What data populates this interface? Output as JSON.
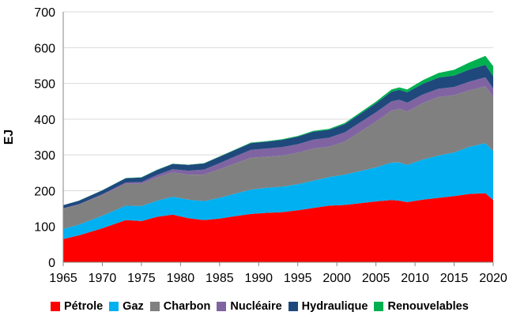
{
  "chart_data": {
    "type": "area",
    "stacked": true,
    "xlabel": "",
    "ylabel": "EJ",
    "ylim": [
      0,
      700
    ],
    "xlim": [
      1965,
      2020
    ],
    "yticks": [
      0,
      100,
      200,
      300,
      400,
      500,
      600,
      700
    ],
    "xticks": [
      1965,
      1970,
      1975,
      1980,
      1985,
      1990,
      1995,
      2000,
      2005,
      2010,
      2015,
      2020
    ],
    "grid": "horizontal",
    "legend_position": "bottom",
    "x": [
      1965,
      1967,
      1970,
      1973,
      1975,
      1977,
      1979,
      1981,
      1983,
      1985,
      1987,
      1989,
      1991,
      1993,
      1995,
      1997,
      1999,
      2001,
      2003,
      2005,
      2007,
      2008,
      2009,
      2011,
      2013,
      2015,
      2017,
      2019,
      2020
    ],
    "series": [
      {
        "name": "Pétrole",
        "color": "#ff0000",
        "values": [
          65,
          75,
          95,
          118,
          115,
          127,
          133,
          123,
          118,
          122,
          129,
          135,
          138,
          140,
          145,
          152,
          158,
          160,
          165,
          170,
          174,
          172,
          168,
          175,
          180,
          185,
          191,
          193,
          174
        ]
      },
      {
        "name": "Gaz",
        "color": "#00b0f0",
        "values": [
          28,
          30,
          35,
          40,
          42,
          45,
          50,
          52,
          53,
          58,
          63,
          68,
          70,
          71,
          73,
          76,
          80,
          85,
          90,
          95,
          105,
          107,
          104,
          112,
          118,
          122,
          132,
          140,
          137
        ]
      },
      {
        "name": "Charbon",
        "color": "#808080",
        "values": [
          57,
          56,
          58,
          61,
          62,
          65,
          68,
          70,
          74,
          80,
          84,
          89,
          87,
          87,
          88,
          90,
          85,
          92,
          110,
          128,
          145,
          150,
          149,
          158,
          164,
          160,
          158,
          159,
          151
        ]
      },
      {
        "name": "Nucléaire",
        "color": "#8064a2",
        "values": [
          0.5,
          1,
          2,
          4,
          5,
          7,
          9,
          11,
          14,
          17,
          20,
          22,
          23,
          24,
          24,
          25,
          25,
          26,
          26,
          26,
          26,
          25,
          25,
          24,
          23,
          23,
          24,
          25,
          24
        ]
      },
      {
        "name": "Hydraulique",
        "color": "#1f497d",
        "values": [
          9,
          10,
          11,
          12,
          13,
          14,
          15,
          16,
          17,
          18,
          18,
          19,
          19,
          20,
          21,
          22,
          22,
          23,
          24,
          25,
          27,
          28,
          29,
          30,
          31,
          32,
          34,
          35,
          34
        ]
      },
      {
        "name": "Renouvelables",
        "color": "#00b050",
        "values": [
          0.2,
          0.2,
          0.3,
          0.4,
          0.5,
          0.5,
          0.6,
          0.7,
          0.8,
          1,
          1,
          1.5,
          1.5,
          2,
          2,
          2.5,
          3,
          3,
          4,
          5,
          6,
          7,
          8,
          10,
          13,
          16,
          20,
          25,
          28
        ]
      }
    ]
  }
}
